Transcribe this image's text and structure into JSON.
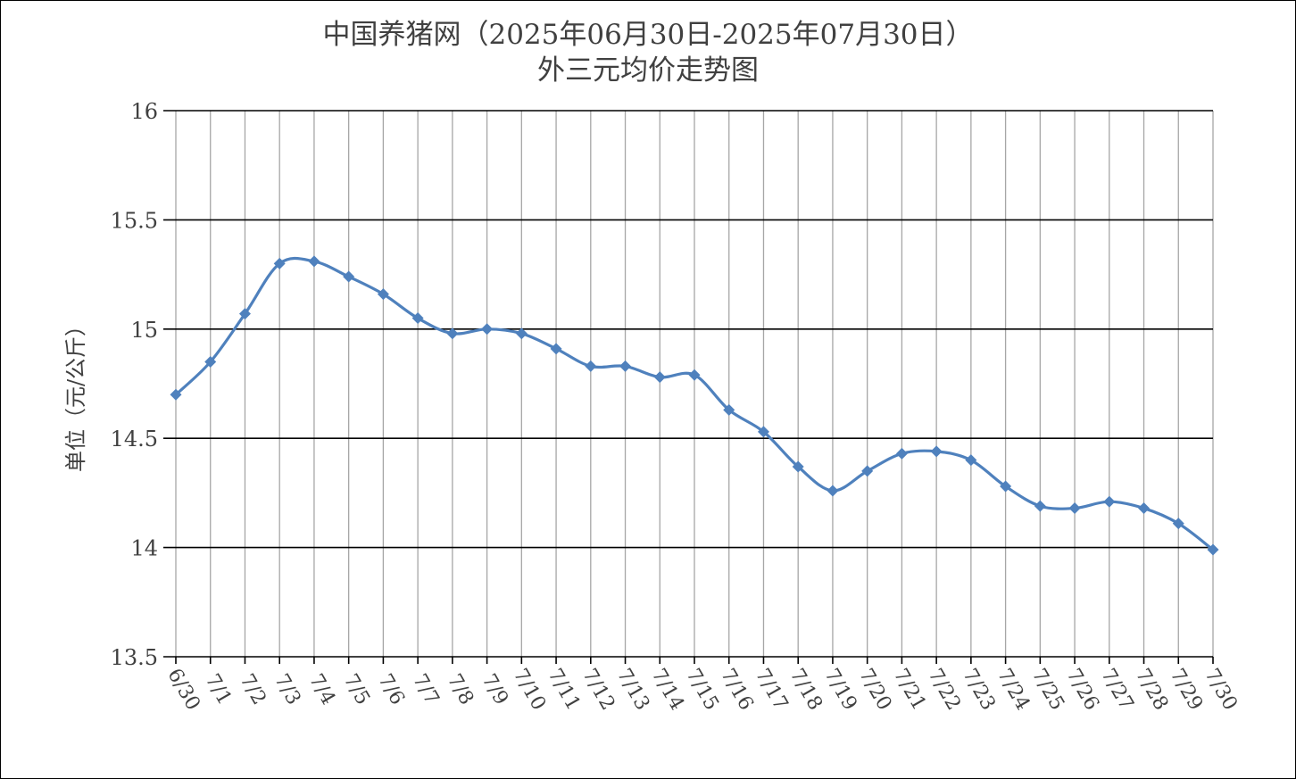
{
  "chart_data": {
    "type": "line",
    "title": "中国养猪网（2025年06月30日-2025年07月30日）",
    "subtitle": "外三元均价走势图",
    "xlabel": "",
    "ylabel": "单位（元/公斤）",
    "ylim": [
      13.5,
      16
    ],
    "yticks": [
      "13.5",
      "14",
      "14.5",
      "15",
      "15.5",
      "16"
    ],
    "grid": true,
    "categories": [
      "6/30",
      "7/1",
      "7/2",
      "7/3",
      "7/4",
      "7/5",
      "7/6",
      "7/7",
      "7/8",
      "7/9",
      "7/10",
      "7/11",
      "7/12",
      "7/13",
      "7/14",
      "7/15",
      "7/16",
      "7/17",
      "7/18",
      "7/19",
      "7/20",
      "7/21",
      "7/22",
      "7/23",
      "7/24",
      "7/25",
      "7/26",
      "7/27",
      "7/28",
      "7/29",
      "7/30"
    ],
    "series": [
      {
        "values": [
          14.7,
          14.85,
          15.07,
          15.3,
          15.31,
          15.24,
          15.16,
          15.05,
          14.98,
          15.0,
          14.98,
          14.91,
          14.83,
          14.83,
          14.78,
          14.79,
          14.63,
          14.53,
          14.37,
          14.26,
          14.35,
          14.43,
          14.44,
          14.4,
          14.28,
          14.19,
          14.18,
          14.21,
          14.18,
          14.11,
          13.99
        ],
        "color": "#4F81BD"
      }
    ]
  }
}
